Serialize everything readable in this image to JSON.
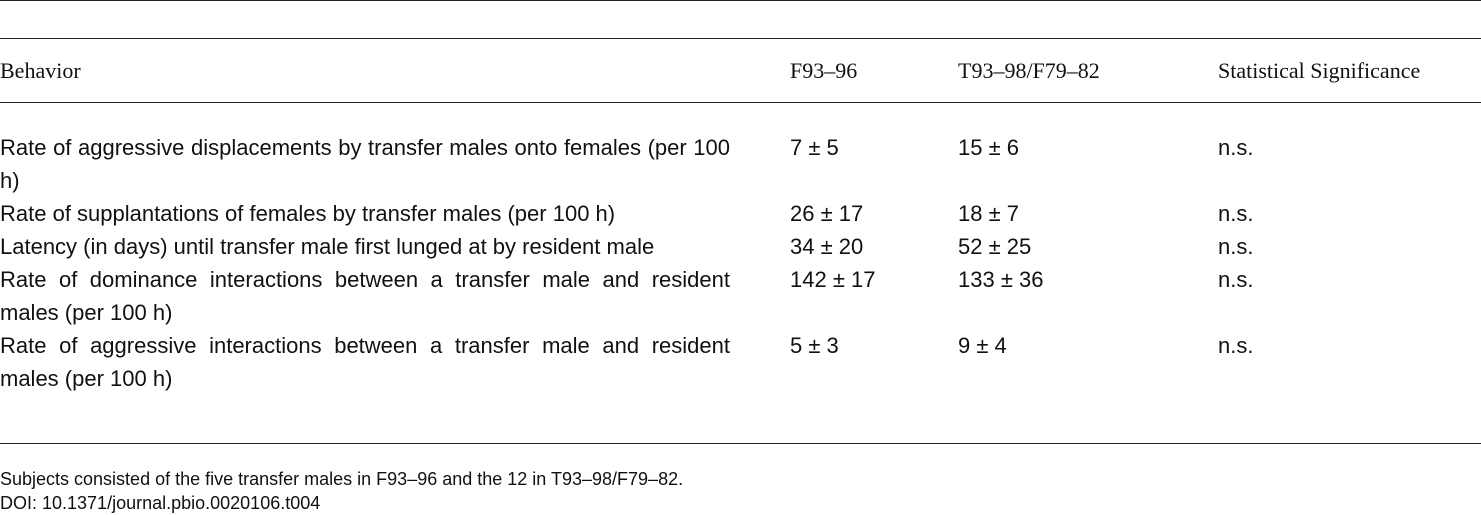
{
  "table": {
    "columns": [
      "Behavior",
      "F93–96",
      "T93–98/F79–82",
      "Statistical Significance"
    ],
    "rows": [
      [
        "Rate of aggressive displacements by transfer males onto females (per 100 h)",
        "7 ± 5",
        "15 ± 6",
        "n.s."
      ],
      [
        "Rate of supplantations of females by transfer males (per 100 h)",
        "26 ± 17",
        "18 ± 7",
        "n.s."
      ],
      [
        "Latency (in days) until transfer male first lunged at by resident male",
        "34 ± 20",
        "52 ± 25",
        "n.s."
      ],
      [
        "Rate of dominance interactions between a transfer male and resident males (per 100 h)",
        "142 ± 17",
        "133 ± 36",
        "n.s."
      ],
      [
        "Rate of aggressive interactions between a transfer male and resident males (per 100 h)",
        "5 ± 3",
        "9 ± 4",
        "n.s."
      ]
    ]
  },
  "footnote": {
    "note": "Subjects consisted of the five transfer males in F93–96 and the 12 in T93–98/F79–82.",
    "doi": "DOI: 10.1371/journal.pbio.0020106.t004"
  }
}
